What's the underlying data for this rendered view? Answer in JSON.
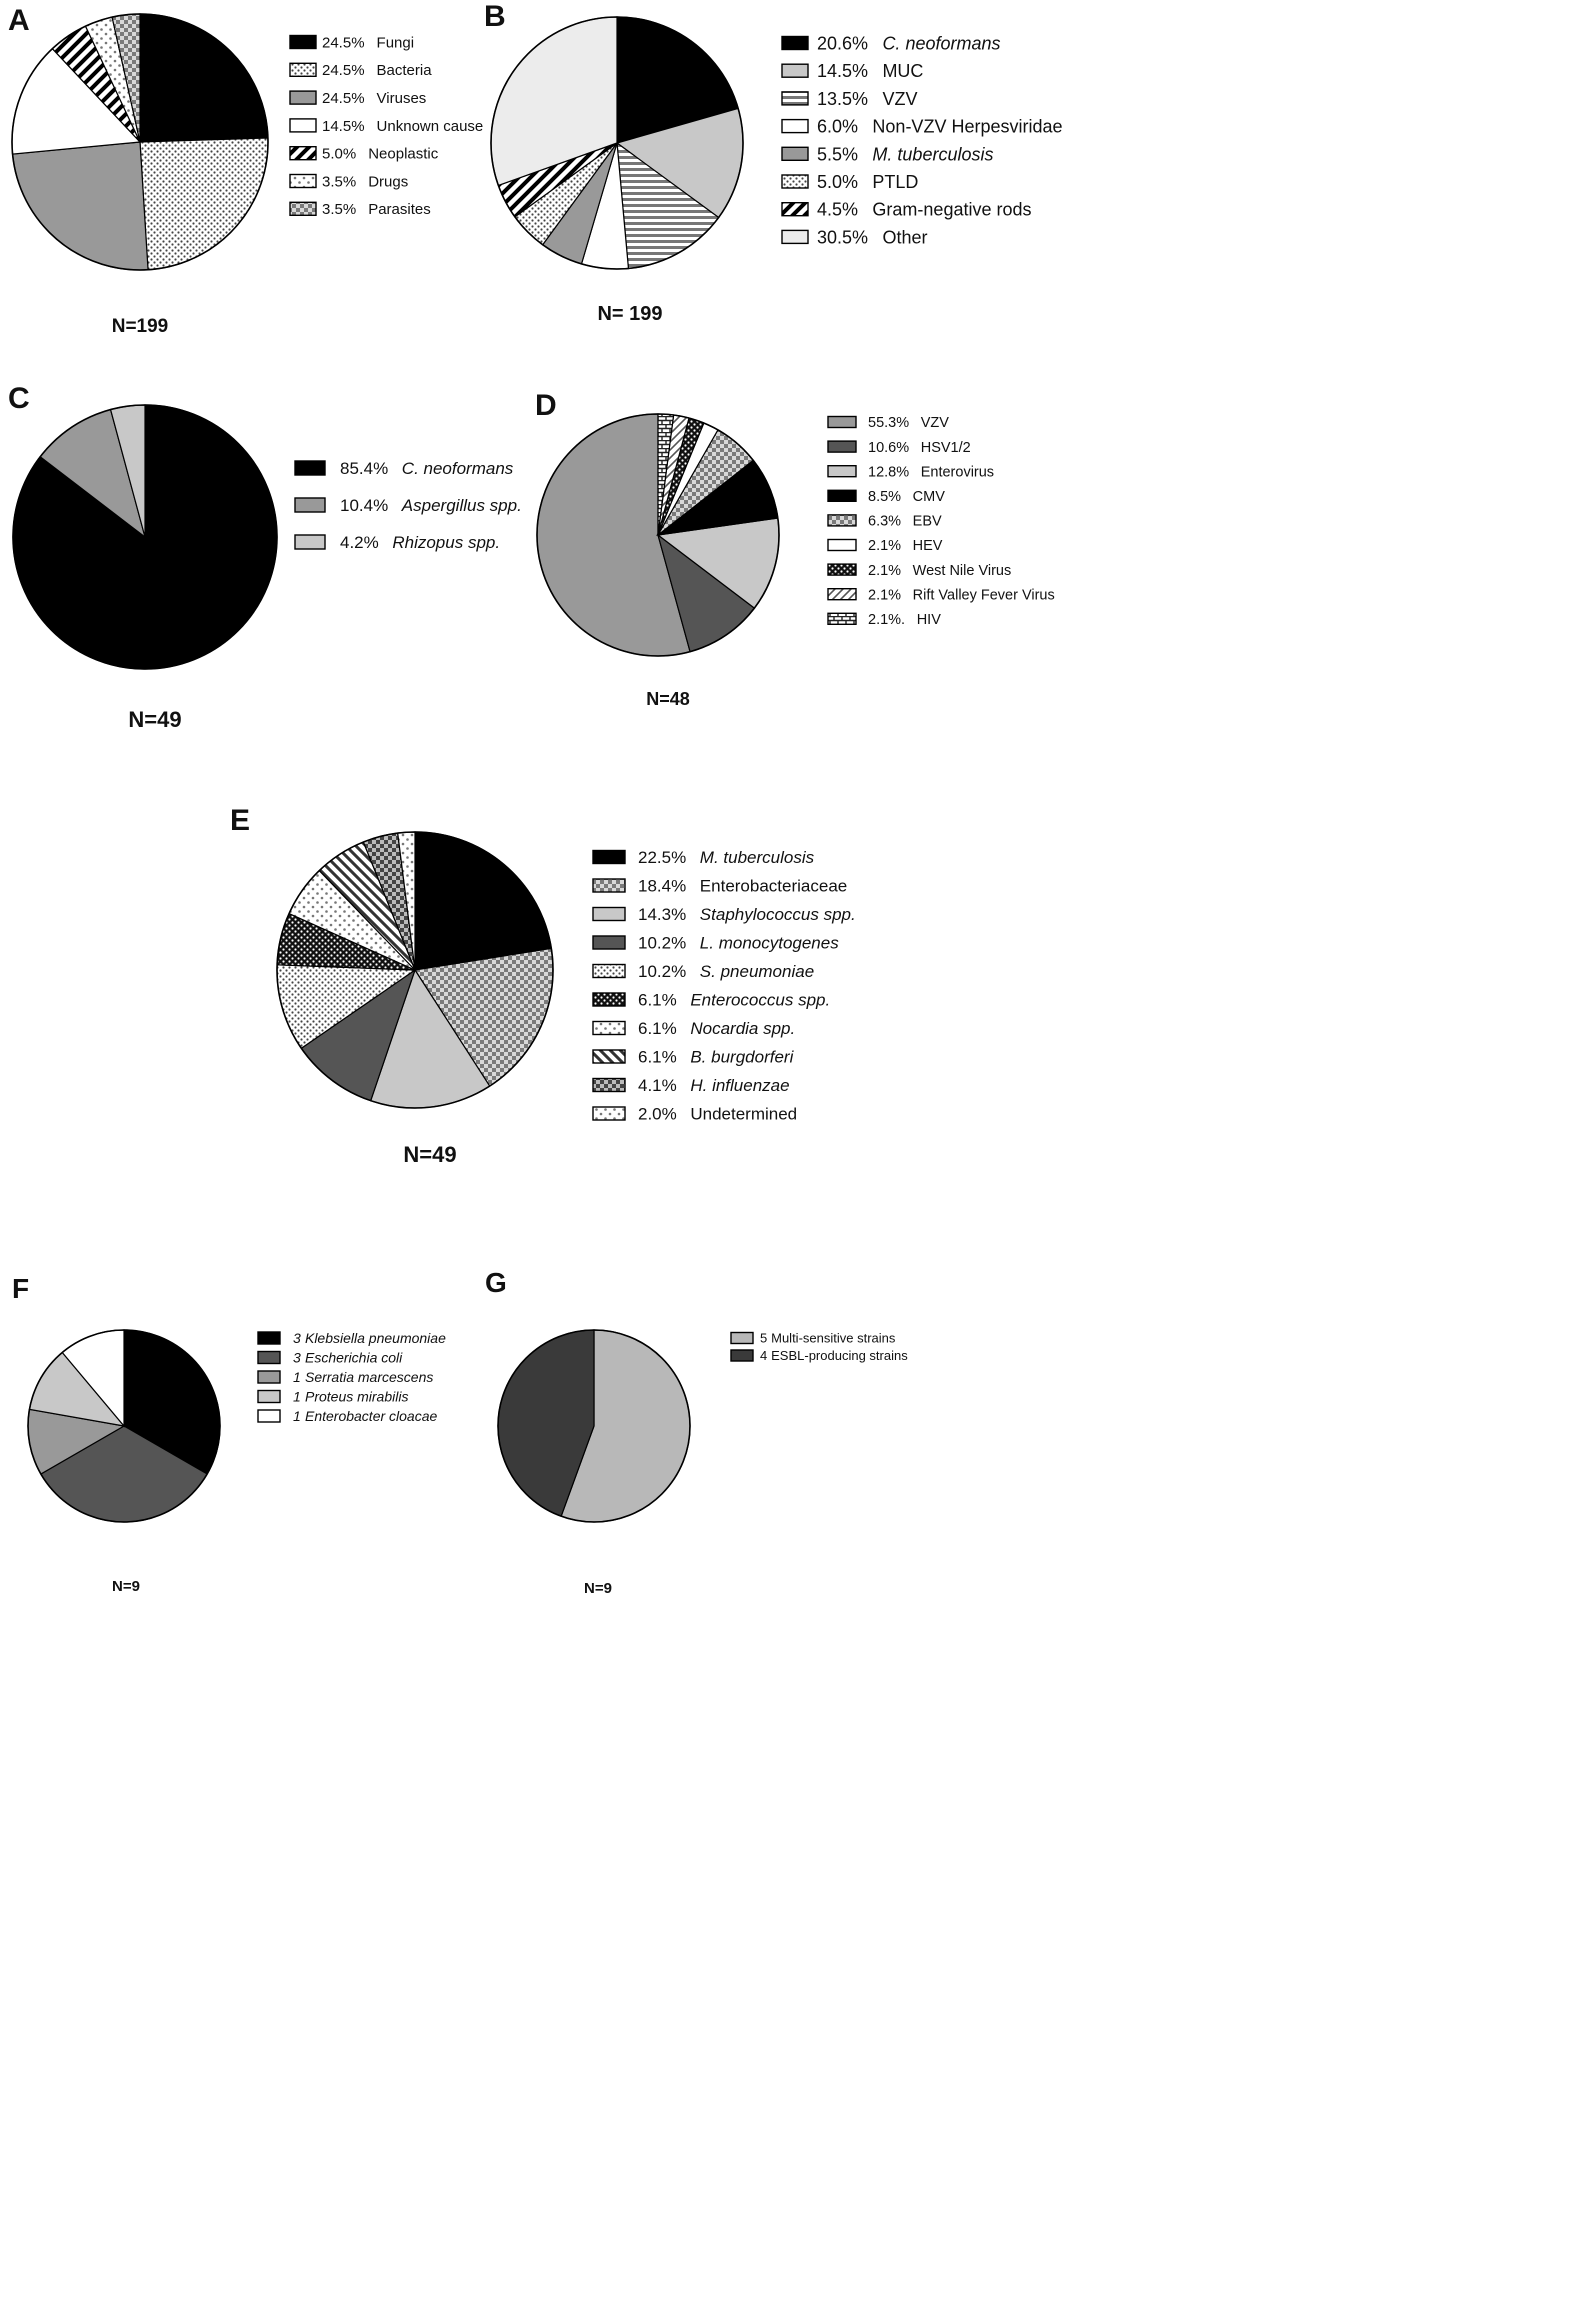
{
  "chart_data": [
    {
      "type": "pie",
      "panel": "A",
      "n_label": "N=199",
      "slices": [
        {
          "pct": "24.5%",
          "label": "Fungi",
          "value": 24.5,
          "pattern": "solid-black"
        },
        {
          "pct": "24.5%",
          "label": "Bacteria",
          "value": 24.5,
          "pattern": "dots-fine"
        },
        {
          "pct": "24.5%",
          "label": "Viruses",
          "value": 24.5,
          "pattern": "solid-gray"
        },
        {
          "pct": "14.5%",
          "label": "Unknown cause",
          "value": 14.5,
          "pattern": "white"
        },
        {
          "pct": "5.0%",
          "label": "Neoplastic",
          "value": 5.0,
          "pattern": "diag-bold"
        },
        {
          "pct": "3.5%",
          "label": "Drugs",
          "value": 3.5,
          "pattern": "dots-sparse"
        },
        {
          "pct": "3.5%",
          "label": "Parasites",
          "value": 3.5,
          "pattern": "checker"
        }
      ]
    },
    {
      "type": "pie",
      "panel": "B",
      "n_label": "N= 199",
      "slices": [
        {
          "pct": "20.6%",
          "label": "C. neoformans",
          "italic": true,
          "value": 20.6,
          "pattern": "solid-black"
        },
        {
          "pct": "14.5%",
          "label": "MUC",
          "value": 14.5,
          "pattern": "solid-lightgray"
        },
        {
          "pct": "13.5%",
          "label": "VZV",
          "value": 13.5,
          "pattern": "horiz-lines"
        },
        {
          "pct": "6.0%",
          "label": "Non-VZV Herpesviridae",
          "value": 6.0,
          "pattern": "white"
        },
        {
          "pct": "5.5%",
          "label": "M. tuberculosis",
          "italic": true,
          "value": 5.5,
          "pattern": "solid-gray"
        },
        {
          "pct": "5.0%",
          "label": "PTLD",
          "value": 5.0,
          "pattern": "dots-fine"
        },
        {
          "pct": "4.5%",
          "label": "Gram-negative rods",
          "value": 4.5,
          "pattern": "diag-bold"
        },
        {
          "pct": "30.5%",
          "label": "Other",
          "value": 30.5,
          "pattern": "solid-vlight"
        }
      ]
    },
    {
      "type": "pie",
      "panel": "C",
      "n_label": "N=49",
      "slices": [
        {
          "pct": "85.4%",
          "label": "C. neoformans",
          "italic": true,
          "value": 85.4,
          "pattern": "solid-black"
        },
        {
          "pct": "10.4%",
          "label": "Aspergillus spp.",
          "italic": true,
          "value": 10.4,
          "pattern": "solid-gray"
        },
        {
          "pct": "4.2%",
          "label": "Rhizopus spp.",
          "italic": true,
          "value": 4.2,
          "pattern": "solid-lightgray"
        }
      ]
    },
    {
      "type": "pie",
      "panel": "D",
      "n_label": "N=48",
      "slices": [
        {
          "pct": "55.3%",
          "label": "VZV",
          "value": 55.3,
          "pattern": "solid-gray"
        },
        {
          "pct": "10.6%",
          "label": "HSV1/2",
          "value": 10.6,
          "pattern": "solid-darkgray"
        },
        {
          "pct": "12.8%",
          "label": "Enterovirus",
          "value": 12.8,
          "pattern": "solid-lightgray"
        },
        {
          "pct": "8.5%",
          "label": "CMV",
          "value": 8.5,
          "pattern": "solid-black"
        },
        {
          "pct": "6.3%",
          "label": "EBV",
          "value": 6.3,
          "pattern": "checker"
        },
        {
          "pct": "2.1%",
          "label": "HEV",
          "value": 2.1,
          "pattern": "white"
        },
        {
          "pct": "2.1%",
          "label": "West Nile Virus",
          "value": 2.1,
          "pattern": "dots-dense"
        },
        {
          "pct": "2.1%",
          "label": "Rift Valley Fever Virus",
          "value": 2.1,
          "pattern": "diag-thin"
        },
        {
          "pct": "2.1%.",
          "label": "HIV",
          "value": 2.1,
          "pattern": "bricks"
        }
      ]
    },
    {
      "type": "pie",
      "panel": "E",
      "n_label": "N=49",
      "slices": [
        {
          "pct": "22.5%",
          "label": "M. tuberculosis",
          "italic": true,
          "value": 22.5,
          "pattern": "solid-black"
        },
        {
          "pct": "18.4%",
          "label": "Enterobacteriaceae",
          "value": 18.4,
          "pattern": "checker"
        },
        {
          "pct": "14.3%",
          "label": "Staphylococcus spp.",
          "italic": true,
          "value": 14.3,
          "pattern": "solid-lightgray"
        },
        {
          "pct": "10.2%",
          "label": "L. monocytogenes",
          "italic": true,
          "value": 10.2,
          "pattern": "solid-darkgray"
        },
        {
          "pct": "10.2%",
          "label": "S. pneumoniae",
          "italic": true,
          "value": 10.2,
          "pattern": "dots-fine"
        },
        {
          "pct": "6.1%",
          "label": "Enterococcus spp.",
          "italic": true,
          "value": 6.1,
          "pattern": "dots-dense"
        },
        {
          "pct": "6.1%",
          "label": "Nocardia spp.",
          "italic": true,
          "value": 6.1,
          "pattern": "dots-sparse"
        },
        {
          "pct": "6.1%",
          "label": "B. burgdorferi",
          "italic": true,
          "value": 6.1,
          "pattern": "diag-back"
        },
        {
          "pct": "4.1%",
          "label": "H. influenzae",
          "italic": true,
          "value": 4.1,
          "pattern": "checker-dark"
        },
        {
          "pct": "2.0%",
          "label": "Undetermined",
          "value": 2.0,
          "pattern": "dots-sparse"
        }
      ]
    },
    {
      "type": "pie",
      "panel": "F",
      "n_label": "N=9",
      "slices": [
        {
          "pct": "3",
          "label": "Klebsiella pneumoniae",
          "italic": true,
          "value": 3,
          "pattern": "solid-black"
        },
        {
          "pct": "3",
          "label": "Escherichia coli",
          "italic": true,
          "value": 3,
          "pattern": "solid-darkgray"
        },
        {
          "pct": "1",
          "label": "Serratia marcescens",
          "italic": true,
          "value": 1,
          "pattern": "solid-gray"
        },
        {
          "pct": "1",
          "label": "Proteus mirabilis",
          "italic": true,
          "value": 1,
          "pattern": "solid-lightgray"
        },
        {
          "pct": "1",
          "label": "Enterobacter cloacae",
          "italic": true,
          "value": 1,
          "pattern": "white"
        }
      ]
    },
    {
      "type": "pie",
      "panel": "G",
      "n_label": "N=9",
      "slices": [
        {
          "pct": "5",
          "label": "Multi-sensitive strains",
          "value": 5,
          "pattern": "solid-silver"
        },
        {
          "pct": "4",
          "label": "ESBL-producing strains",
          "value": 4,
          "pattern": "solid-charcoal"
        }
      ]
    }
  ],
  "colors": {
    "solid-black": "#000000",
    "solid-darkgray": "#555555",
    "solid-charcoal": "#3a3a3a",
    "solid-gray": "#999999",
    "solid-silver": "#b8b8b8",
    "solid-lightgray": "#c8c8c8",
    "solid-vlight": "#ececec",
    "white": "#ffffff"
  }
}
